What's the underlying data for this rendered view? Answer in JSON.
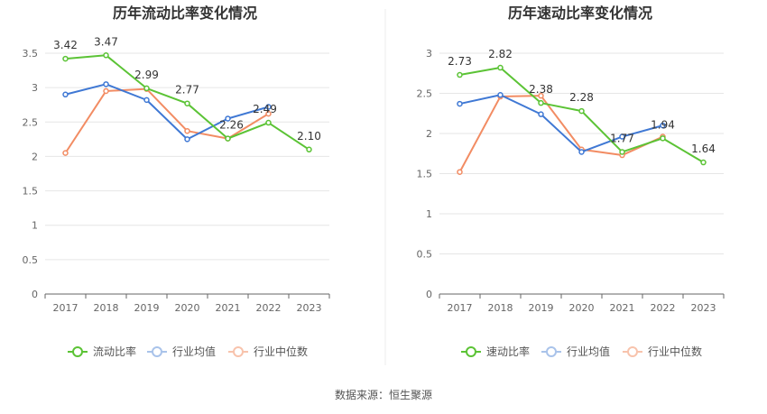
{
  "source": "数据来源：恒生聚源",
  "colors": {
    "company": "#5bc335",
    "industry_avg": "#3f78d4",
    "industry_median": "#f28c63"
  },
  "chart_data": [
    {
      "type": "line",
      "title": "历年流动比率变化情况",
      "categories": [
        "2017",
        "2018",
        "2019",
        "2020",
        "2021",
        "2022",
        "2023"
      ],
      "ylim": [
        0,
        3.5
      ],
      "yticks": [
        "0",
        "0.5",
        "1",
        "1.5",
        "2",
        "2.5",
        "3",
        "3.5"
      ],
      "grid": true,
      "legend_position": "bottom",
      "series": [
        {
          "name": "流动比率",
          "values": [
            3.42,
            3.47,
            2.99,
            2.77,
            2.26,
            2.49,
            2.1
          ],
          "labels": [
            "3.42",
            "3.47",
            "2.99",
            "2.77",
            "2.26",
            "2.49",
            "2.10"
          ]
        },
        {
          "name": "行业均值",
          "values": [
            2.9,
            3.05,
            2.82,
            2.25,
            2.55,
            2.72,
            null
          ]
        },
        {
          "name": "行业中位数",
          "values": [
            2.05,
            2.95,
            2.98,
            2.37,
            2.26,
            2.62,
            null
          ]
        }
      ]
    },
    {
      "type": "line",
      "title": "历年速动比率变化情况",
      "categories": [
        "2017",
        "2018",
        "2019",
        "2020",
        "2021",
        "2022",
        "2023"
      ],
      "ylim": [
        0,
        3
      ],
      "yticks": [
        "0",
        "0.5",
        "1",
        "1.5",
        "2",
        "2.5",
        "3"
      ],
      "grid": true,
      "legend_position": "bottom",
      "series": [
        {
          "name": "速动比率",
          "values": [
            2.73,
            2.82,
            2.38,
            2.28,
            1.77,
            1.94,
            1.64
          ],
          "labels": [
            "2.73",
            "2.82",
            "2.38",
            "2.28",
            "1.77",
            "1.94",
            "1.64"
          ]
        },
        {
          "name": "行业均值",
          "values": [
            2.37,
            2.48,
            2.24,
            1.77,
            1.96,
            2.1,
            null
          ]
        },
        {
          "name": "行业中位数",
          "values": [
            1.52,
            2.46,
            2.47,
            1.8,
            1.73,
            1.96,
            null
          ]
        }
      ]
    }
  ]
}
